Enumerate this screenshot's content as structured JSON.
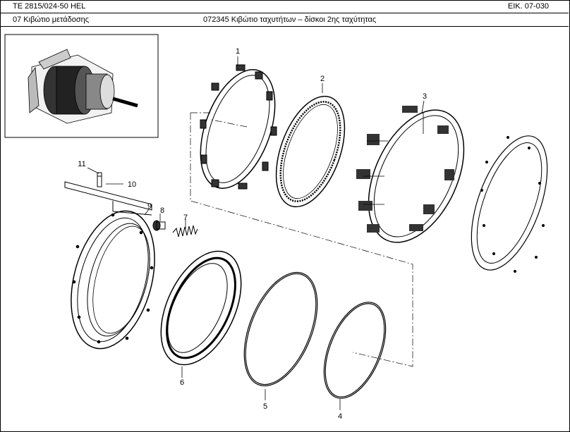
{
  "header": {
    "model": "TE 2815/024-50 HEL",
    "figure_ref": "EIK. 07-030",
    "group": "07  Κιβώτιο μετάδοσης",
    "title": "072345 Κιβώτιο ταχυτήτων – δίσκοι 2ης ταχύτητας"
  },
  "callouts": [
    "1",
    "2",
    "3",
    "4",
    "5",
    "6",
    "7",
    "8",
    "9",
    "10",
    "11"
  ],
  "icons": {
    "overview": "transmission-overview-thumbnail"
  }
}
